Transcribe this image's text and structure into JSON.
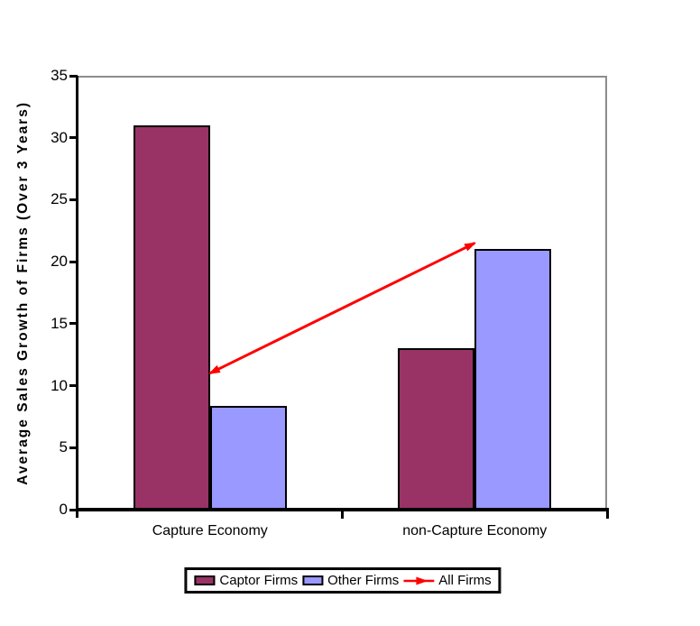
{
  "chart_data": {
    "type": "bar",
    "title": "",
    "categories": [
      "Capture Economy",
      "non-Capture Economy"
    ],
    "series": [
      {
        "name": "Captor Firms",
        "kind": "bar",
        "color": "#993366",
        "values": [
          31,
          13
        ]
      },
      {
        "name": "Other Firms",
        "kind": "bar",
        "color": "#9999FF",
        "values": [
          8.4,
          21
        ]
      },
      {
        "name": "All Firms",
        "kind": "line",
        "color": "#FF0000",
        "values": [
          11,
          21.5
        ],
        "marker": "arrow"
      }
    ],
    "xlabel": "",
    "ylabel": "Average Sales Growth of Firms (Over 3 Years)",
    "ylim": [
      0,
      35
    ],
    "y_ticks": [
      0,
      5,
      10,
      15,
      20,
      25,
      30,
      35
    ],
    "grid": false,
    "legend_position": "bottom",
    "style": {
      "background": "#FFFFFF",
      "axis_color": "#000000",
      "plot_border_color": "#8C8C8C",
      "bar_border_color": "#000000"
    }
  }
}
